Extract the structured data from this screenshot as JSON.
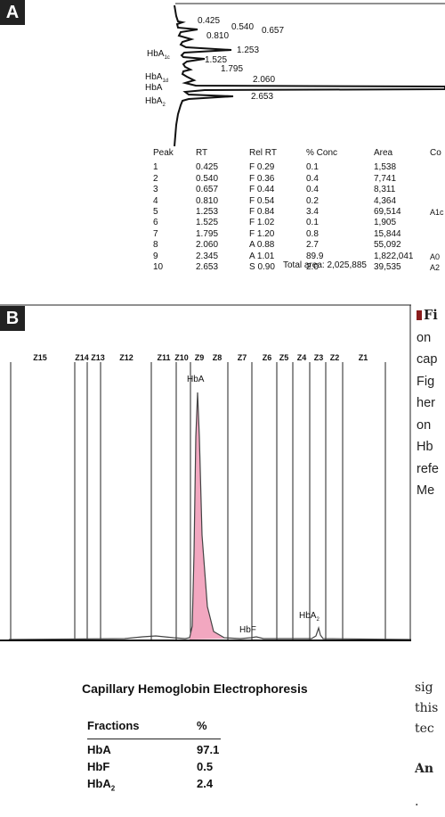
{
  "panel_a": {
    "label": "A",
    "peak_labels": [
      "0.425",
      "0.540",
      "0.657",
      "0.810",
      "1.253",
      "1.525",
      "1.795",
      "2.060",
      "2.653"
    ],
    "fraction_labels": [
      {
        "base": "HbA",
        "sub": "1c"
      },
      {
        "base": "HbA",
        "sub": "1d"
      },
      {
        "base": "HbA",
        "sub": ""
      },
      {
        "base": "HbA",
        "sub": "2"
      }
    ],
    "table": {
      "headers": [
        "Peak",
        "RT",
        "Rel RT",
        "% Conc",
        "Area",
        "Co"
      ],
      "rows": [
        [
          "1",
          "0.425",
          "F  0.29",
          "0.1",
          "1,538",
          ""
        ],
        [
          "2",
          "0.540",
          "F  0.36",
          "0.4",
          "7,741",
          ""
        ],
        [
          "3",
          "0.657",
          "F  0.44",
          "0.4",
          "8,311",
          ""
        ],
        [
          "4",
          "0.810",
          "F  0.54",
          "0.2",
          "4,364",
          ""
        ],
        [
          "5",
          "1.253",
          "F  0.84",
          "3.4",
          "69,514",
          "A1c"
        ],
        [
          "6",
          "1.525",
          "F  1.02",
          "0.1",
          "1,905",
          ""
        ],
        [
          "7",
          "1.795",
          "F  1.20",
          "0.8",
          "15,844",
          ""
        ],
        [
          "8",
          "2.060",
          "A  0.88",
          "2.7",
          "55,092",
          ""
        ],
        [
          "9",
          "2.345",
          "A  1.01",
          "89.9",
          "1,822,041",
          "A0"
        ],
        [
          "10",
          "2.653",
          "S  0.90",
          "2.0",
          "39,535",
          "A2"
        ]
      ],
      "total": "Total area: 2,025,885"
    }
  },
  "panel_b": {
    "label": "B",
    "zones": [
      "Z15",
      "Z14",
      "Z13",
      "Z12",
      "Z11",
      "Z10",
      "Z9",
      "Z8",
      "Z7",
      "Z6",
      "Z5",
      "Z4",
      "Z3",
      "Z2",
      "Z1"
    ],
    "peak_labels": {
      "hba": "HbA",
      "hbf": "HbF",
      "hba2_base": "HbA",
      "hba2_sub": "2"
    },
    "title": "Capillary Hemoglobin Electrophoresis",
    "fractions_header": [
      "Fractions",
      "%"
    ],
    "fractions": [
      {
        "name": "HbA",
        "sub": "",
        "value": "97.1"
      },
      {
        "name": "HbF",
        "sub": "",
        "value": "0.5"
      },
      {
        "name": "HbA",
        "sub": "2",
        "value": "2.4"
      }
    ]
  },
  "side_text": {
    "lines": [
      "Fi",
      "on",
      "cap",
      "Fig",
      "her",
      "on",
      "Hb",
      "refe",
      "Me"
    ]
  },
  "lower_text": {
    "lines": [
      "sig",
      "this",
      "tec"
    ],
    "heading": "An",
    "dot": "."
  },
  "colors": {
    "peak_fill": "#f2a7c0",
    "peak_line": "#333333",
    "panel_bg": "#222222",
    "figure_square": "#8a1c1c"
  }
}
